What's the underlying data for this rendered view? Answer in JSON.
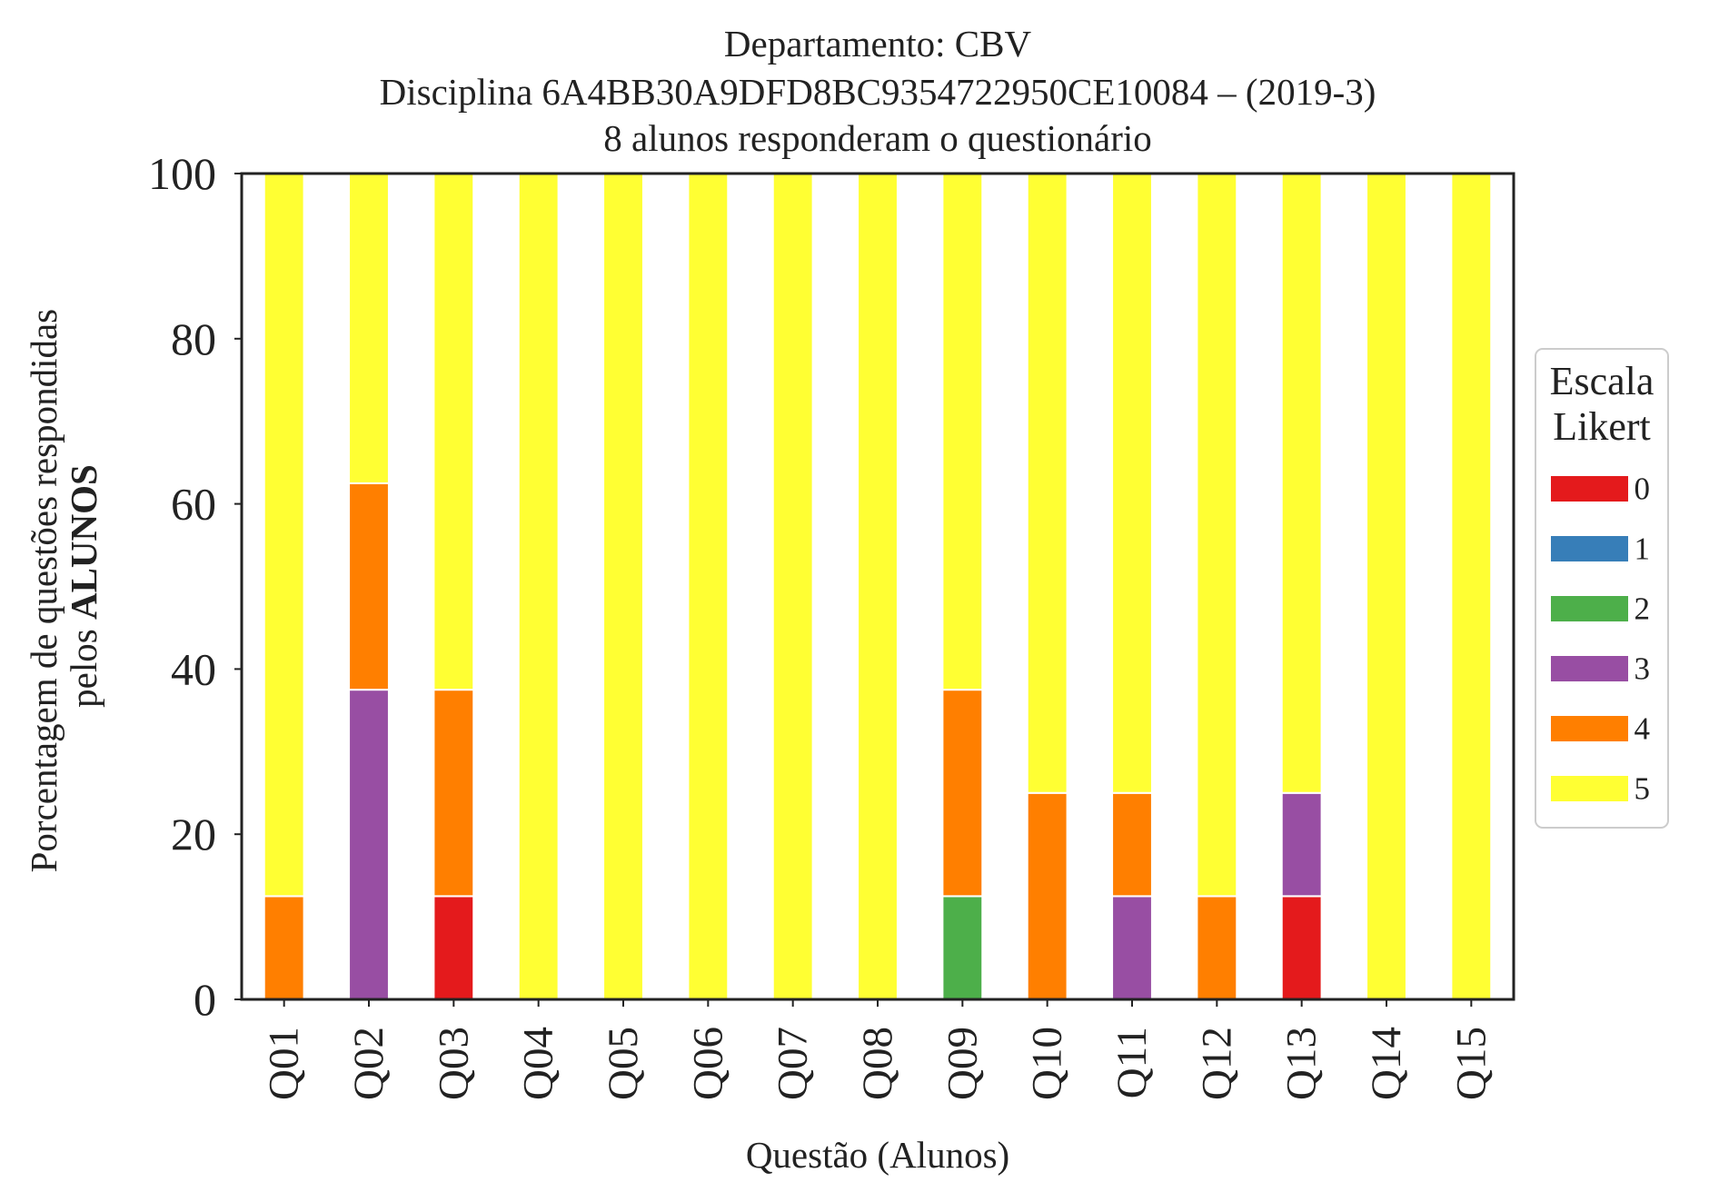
{
  "chart_data": {
    "type": "bar",
    "stacked": true,
    "title_lines": [
      "Departamento: CBV",
      "Disciplina 6A4BB30A9DFD8BC9354722950CE10084 – (2019-3)",
      "8 alunos responderam o questionário"
    ],
    "xlabel": "Questão (Alunos)",
    "ylabel_line1": "Porcentagem de questões respondidas",
    "ylabel_line2_prefix": "pelos ",
    "ylabel_line2_bold": "ALUNOS",
    "ylim": [
      0,
      100
    ],
    "yticks": [
      "0",
      "20",
      "40",
      "60",
      "80",
      "100"
    ],
    "grid": false,
    "legend_position": "right-center",
    "legend_title_lines": [
      "Escala",
      "Likert"
    ],
    "categories": [
      "Q01",
      "Q02",
      "Q03",
      "Q04",
      "Q05",
      "Q06",
      "Q07",
      "Q08",
      "Q09",
      "Q10",
      "Q11",
      "Q12",
      "Q13",
      "Q14",
      "Q15"
    ],
    "series": [
      {
        "name": "0",
        "color": "#e41a1c",
        "values": [
          0,
          0,
          12.5,
          0,
          0,
          0,
          0,
          0,
          0,
          0,
          0,
          0,
          12.5,
          0,
          0
        ]
      },
      {
        "name": "1",
        "color": "#377eb8",
        "values": [
          0,
          0,
          0,
          0,
          0,
          0,
          0,
          0,
          0,
          0,
          0,
          0,
          0,
          0,
          0
        ]
      },
      {
        "name": "2",
        "color": "#4daf4a",
        "values": [
          0,
          0,
          0,
          0,
          0,
          0,
          0,
          0,
          12.5,
          0,
          0,
          0,
          0,
          0,
          0
        ]
      },
      {
        "name": "3",
        "color": "#984ea3",
        "values": [
          0,
          37.5,
          0,
          0,
          0,
          0,
          0,
          0,
          0,
          0,
          12.5,
          0,
          12.5,
          0,
          0
        ]
      },
      {
        "name": "4",
        "color": "#ff7f00",
        "values": [
          12.5,
          25,
          25,
          0,
          0,
          0,
          0,
          0,
          25,
          25,
          12.5,
          12.5,
          0,
          0,
          0
        ]
      },
      {
        "name": "5",
        "color": "#ffff33",
        "values": [
          87.5,
          37.5,
          62.5,
          100,
          100,
          100,
          100,
          100,
          62.5,
          75,
          75,
          87.5,
          75,
          100,
          100
        ]
      }
    ]
  }
}
